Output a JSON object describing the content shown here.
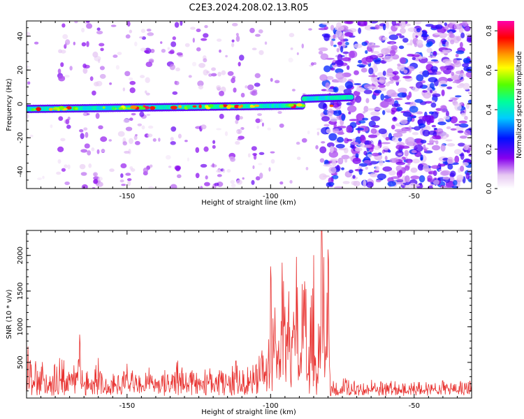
{
  "title": "C2E3.2024.208.02.13.R05",
  "colorbar": {
    "label": "Normalized spectral amplitude",
    "ticks": [
      "0.0",
      "0.2",
      "0.4",
      "0.6",
      "0.8"
    ],
    "tick_values": [
      0.0,
      0.2,
      0.4,
      0.6,
      0.8
    ],
    "range": [
      0.0,
      0.85
    ]
  },
  "chart_data": [
    {
      "type": "heatmap",
      "xlabel": "Height of straight line (km)",
      "ylabel": "Frequency (Hz)",
      "xlim": [
        -185,
        -30
      ],
      "ylim": [
        -50,
        49
      ],
      "xticks": [
        -150,
        -100,
        -50
      ],
      "xtick_labels": [
        "-150",
        "-100",
        "-50"
      ],
      "yticks": [
        -40,
        -20,
        0,
        20,
        40
      ],
      "ytick_labels": [
        "-40",
        "-20",
        "0",
        "20",
        "40"
      ],
      "colorscale": "rainbow (white-purple-blue-cyan-green-yellow-orange-red-magenta)",
      "features": {
        "ridge": {
          "x_start": -185,
          "x_end": -72,
          "freq_start": -3,
          "freq_end": 4,
          "amplitude": 0.55
        },
        "noise_onset_x": -82,
        "noise_scattered_columns_x": [
          -172,
          -164,
          -160,
          -150,
          -143,
          -133,
          -124,
          -118,
          -112,
          -105
        ]
      }
    },
    {
      "type": "line",
      "xlabel": "Height of straight line (km)",
      "ylabel": "SNR (10 * v/v)",
      "xlim": [
        -185,
        -30
      ],
      "ylim": [
        0,
        2350
      ],
      "xticks": [
        -150,
        -100,
        -50
      ],
      "xtick_labels": [
        "-150",
        "-100",
        "-50"
      ],
      "yticks": [
        500,
        1000,
        1500,
        2000
      ],
      "ytick_labels": [
        "500",
        "1000",
        "1500",
        "2000"
      ],
      "series": [
        {
          "color": "#e8312f",
          "x": [
            -185,
            -183,
            -180,
            -177,
            -175,
            -172,
            -170,
            -168,
            -167,
            -165,
            -162,
            -160,
            -157,
            -155,
            -152,
            -150,
            -147,
            -145,
            -143,
            -140,
            -137,
            -135,
            -132,
            -130,
            -128,
            -125,
            -122,
            -120,
            -118,
            -115,
            -112,
            -110,
            -108,
            -105,
            -103,
            -101,
            -100,
            -99,
            -98,
            -97,
            -96,
            -95,
            -94,
            -93,
            -92,
            -91,
            -90,
            -89,
            -88,
            -87,
            -86,
            -85,
            -84,
            -83,
            -82,
            -81,
            -80,
            -79,
            -78,
            -76,
            -74,
            -72,
            -70,
            -67,
            -65,
            -62,
            -60,
            -57,
            -55,
            -52,
            -50,
            -47,
            -45,
            -42,
            -40,
            -37,
            -35,
            -32,
            -30
          ],
          "y": [
            700,
            380,
            520,
            330,
            460,
            560,
            300,
            420,
            950,
            380,
            260,
            480,
            220,
            330,
            250,
            420,
            300,
            260,
            400,
            280,
            350,
            230,
            480,
            290,
            380,
            270,
            420,
            310,
            360,
            280,
            450,
            320,
            380,
            420,
            580,
            700,
            1700,
            1100,
            1450,
            900,
            1600,
            1250,
            1700,
            500,
            1500,
            1800,
            600,
            1350,
            2050,
            400,
            1200,
            1800,
            100,
            1400,
            2300,
            1000,
            2100,
            250,
            230,
            200,
            260,
            180,
            230,
            170,
            240,
            200,
            180,
            220,
            160,
            230,
            200,
            180,
            240,
            170,
            210,
            200,
            180,
            230,
            190
          ]
        }
      ]
    }
  ]
}
